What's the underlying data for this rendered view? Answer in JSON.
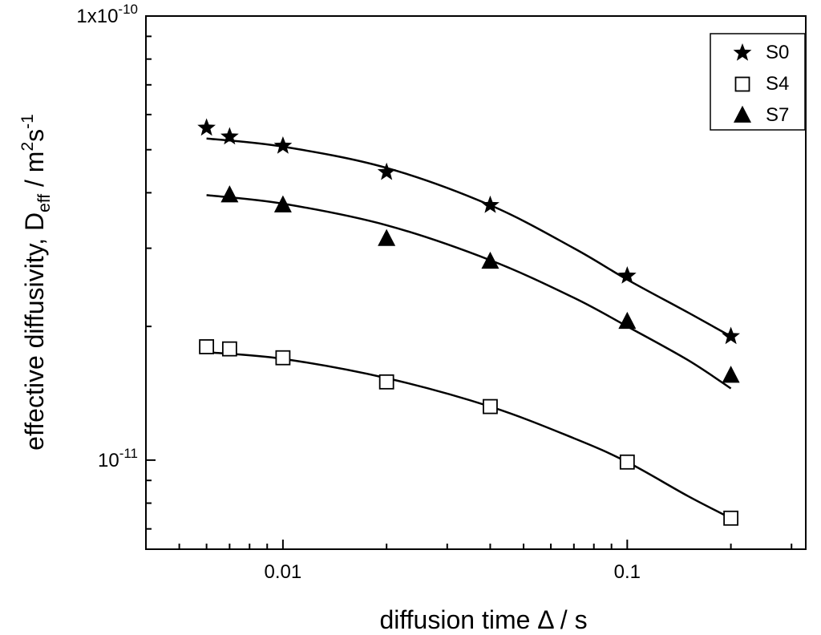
{
  "chart_data": {
    "type": "scatter",
    "x_scale": "log",
    "y_scale": "log",
    "xlim": [
      0.004,
      0.33
    ],
    "ylim": [
      6.3e-12,
      1e-10
    ],
    "xlabel": {
      "text": "diffusion time ",
      "symbol": "Δ",
      "unit": " / s"
    },
    "ylabel": {
      "text": "effective diffusivity, D",
      "sub": "eff",
      "unit_a": " / m",
      "sup1": "2",
      "unit_b": "s",
      "sup2": "-1"
    },
    "x_ticks": [
      {
        "value": 0.01,
        "label": "0.01"
      },
      {
        "value": 0.1,
        "label": "0.1"
      }
    ],
    "y_ticks": [
      {
        "value": 1e-10,
        "mantissa": "1x10",
        "exponent": "-10"
      },
      {
        "value": 1e-11,
        "mantissa": "10",
        "exponent": "-11"
      }
    ],
    "legend_position": "top-right",
    "series": [
      {
        "name": "S0",
        "marker": "star",
        "color": "#000000",
        "x": [
          0.006,
          0.007,
          0.01,
          0.02,
          0.04,
          0.1,
          0.2
        ],
        "y": [
          5.6e-11,
          5.35e-11,
          5.1e-11,
          4.45e-11,
          3.75e-11,
          2.6e-11,
          1.9e-11
        ],
        "fit_x": [
          0.006,
          0.01,
          0.02,
          0.04,
          0.07,
          0.1,
          0.15,
          0.2
        ],
        "fit_y": [
          5.3e-11,
          5.08e-11,
          4.55e-11,
          3.75e-11,
          3e-11,
          2.55e-11,
          2.15e-11,
          1.9e-11
        ]
      },
      {
        "name": "S4",
        "marker": "open-square",
        "color": "#000000",
        "x": [
          0.006,
          0.007,
          0.01,
          0.02,
          0.04,
          0.1,
          0.2
        ],
        "y": [
          1.8e-11,
          1.78e-11,
          1.7e-11,
          1.5e-11,
          1.32e-11,
          9.9e-12,
          7.4e-12
        ],
        "fit_x": [
          0.006,
          0.01,
          0.02,
          0.04,
          0.07,
          0.1,
          0.15,
          0.2
        ],
        "fit_y": [
          1.75e-11,
          1.69e-11,
          1.53e-11,
          1.32e-11,
          1.12e-11,
          9.9e-12,
          8.3e-12,
          7.4e-12
        ]
      },
      {
        "name": "S7",
        "marker": "filled-triangle",
        "color": "#000000",
        "x": [
          0.007,
          0.01,
          0.02,
          0.04,
          0.1,
          0.2
        ],
        "y": [
          3.95e-11,
          3.75e-11,
          3.15e-11,
          2.8e-11,
          2.05e-11,
          1.55e-11
        ],
        "fit_x": [
          0.006,
          0.01,
          0.02,
          0.04,
          0.07,
          0.1,
          0.15,
          0.2
        ],
        "fit_y": [
          3.95e-11,
          3.78e-11,
          3.38e-11,
          2.82e-11,
          2.32e-11,
          2e-11,
          1.68e-11,
          1.45e-11
        ]
      }
    ]
  }
}
